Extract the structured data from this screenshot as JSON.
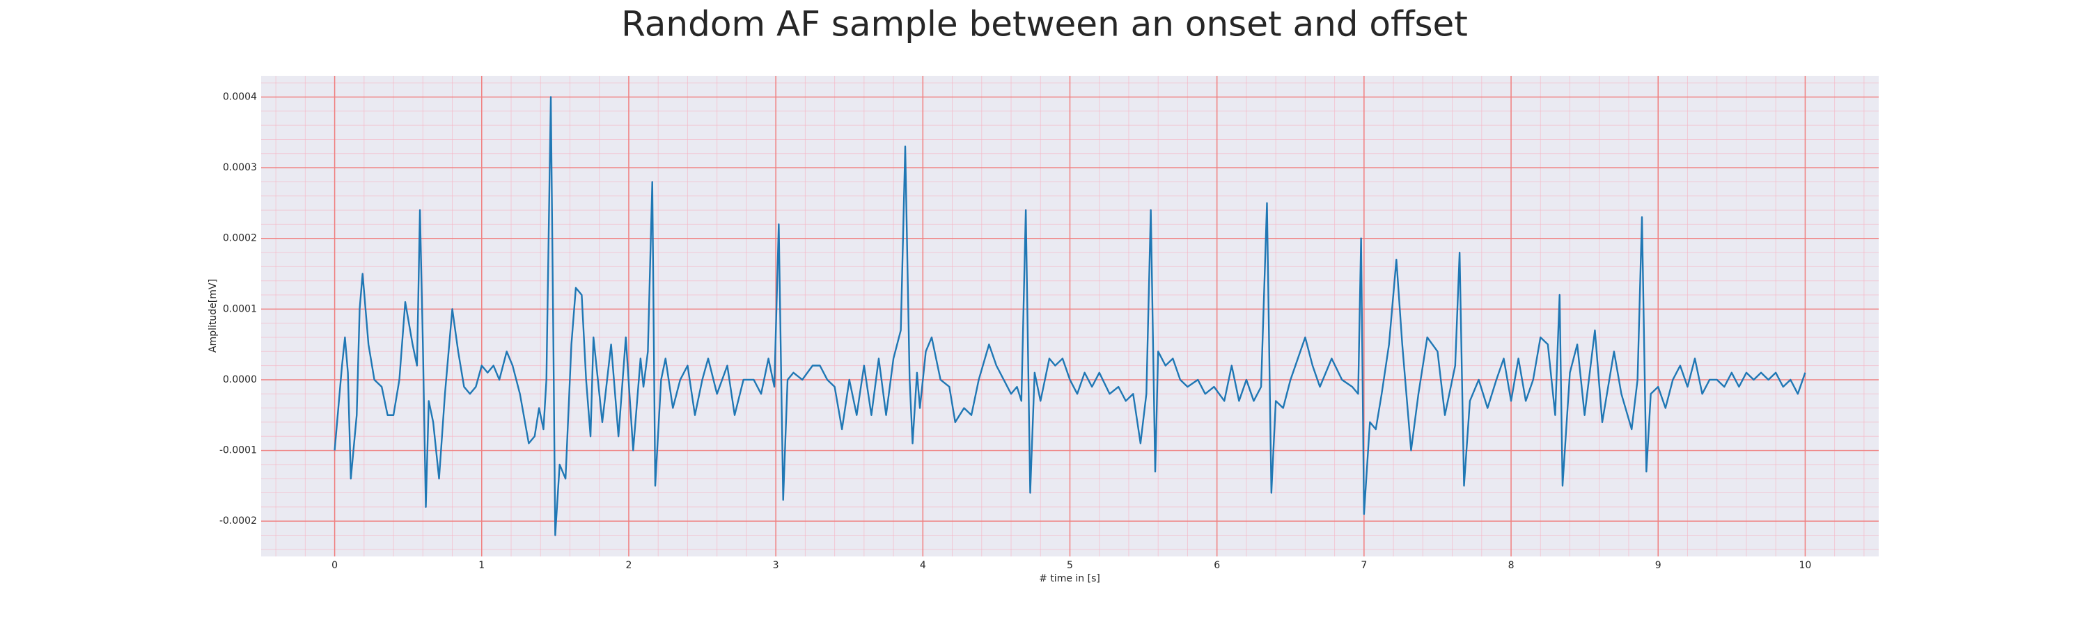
{
  "chart_data": {
    "type": "line",
    "title": "Random AF sample between an onset and offset",
    "xlabel": "# time in [s]",
    "ylabel": "Amplitude[mV]",
    "xlim": [
      -0.5,
      10.5
    ],
    "ylim": [
      -0.00025,
      0.00043
    ],
    "xticks": [
      0,
      1,
      2,
      3,
      4,
      5,
      6,
      7,
      8,
      9,
      10
    ],
    "yticks": [
      -0.0002,
      -0.0001,
      {
        "value": 0,
        "label": "0.0000"
      },
      0.0001,
      0.0002,
      0.0003,
      0.0004
    ],
    "grid": true,
    "minor_grid": true,
    "series": [
      {
        "color": "#1f77b4",
        "x": [
          0,
          0.05,
          0.07,
          0.09,
          0.11,
          0.15,
          0.17,
          0.19,
          0.23,
          0.27,
          0.32,
          0.36,
          0.4,
          0.44,
          0.48,
          0.53,
          0.56,
          0.58,
          0.6,
          0.62,
          0.64,
          0.67,
          0.71,
          0.75,
          0.8,
          0.84,
          0.88,
          0.92,
          0.96,
          1.0,
          1.04,
          1.08,
          1.12,
          1.17,
          1.21,
          1.26,
          1.32,
          1.36,
          1.39,
          1.42,
          1.44,
          1.47,
          1.49,
          1.5,
          1.53,
          1.57,
          1.61,
          1.64,
          1.68,
          1.71,
          1.74,
          1.76,
          1.82,
          1.88,
          1.93,
          1.98,
          2.03,
          2.08,
          2.1,
          2.13,
          2.16,
          2.18,
          2.22,
          2.25,
          2.3,
          2.35,
          2.4,
          2.45,
          2.5,
          2.54,
          2.6,
          2.67,
          2.72,
          2.78,
          2.85,
          2.9,
          2.95,
          2.99,
          3.02,
          3.05,
          3.08,
          3.12,
          3.18,
          3.25,
          3.3,
          3.35,
          3.4,
          3.45,
          3.5,
          3.55,
          3.6,
          3.65,
          3.7,
          3.75,
          3.8,
          3.85,
          3.88,
          3.91,
          3.93,
          3.96,
          3.98,
          4.02,
          4.06,
          4.12,
          4.18,
          4.22,
          4.28,
          4.33,
          4.38,
          4.45,
          4.5,
          4.55,
          4.6,
          4.64,
          4.67,
          4.7,
          4.73,
          4.76,
          4.8,
          4.86,
          4.9,
          4.95,
          5.0,
          5.05,
          5.1,
          5.15,
          5.2,
          5.27,
          5.33,
          5.38,
          5.43,
          5.48,
          5.52,
          5.55,
          5.58,
          5.6,
          5.65,
          5.7,
          5.75,
          5.8,
          5.87,
          5.92,
          5.98,
          6.05,
          6.1,
          6.15,
          6.2,
          6.25,
          6.3,
          6.34,
          6.37,
          6.4,
          6.45,
          6.5,
          6.55,
          6.6,
          6.65,
          6.7,
          6.78,
          6.85,
          6.92,
          6.96,
          6.98,
          7.0,
          7.04,
          7.08,
          7.12,
          7.17,
          7.22,
          7.26,
          7.32,
          7.37,
          7.43,
          7.5,
          7.55,
          7.62,
          7.65,
          7.68,
          7.72,
          7.78,
          7.84,
          7.9,
          7.95,
          8.0,
          8.05,
          8.1,
          8.15,
          8.2,
          8.25,
          8.3,
          8.33,
          8.35,
          8.4,
          8.45,
          8.5,
          8.57,
          8.62,
          8.7,
          8.75,
          8.82,
          8.86,
          8.89,
          8.92,
          8.95,
          9.0,
          9.05,
          9.1,
          9.15,
          9.2,
          9.25,
          9.3,
          9.35,
          9.4,
          9.45,
          9.5,
          9.55,
          9.6,
          9.65,
          9.7,
          9.75,
          9.8,
          9.85,
          9.9,
          9.95,
          10.0
        ],
        "values": [
          -0.0001,
          2e-05,
          6e-05,
          1e-05,
          -0.00014,
          -5e-05,
          0.0001,
          0.00015,
          5e-05,
          0,
          -1e-05,
          -5e-05,
          -5e-05,
          0,
          0.00011,
          5e-05,
          2e-05,
          0.00024,
          5e-05,
          -0.00018,
          -3e-05,
          -6e-05,
          -0.00014,
          -2e-05,
          0.0001,
          4e-05,
          -1e-05,
          -2e-05,
          -1e-05,
          2e-05,
          1e-05,
          2e-05,
          0,
          4e-05,
          2e-05,
          -2e-05,
          -9e-05,
          -8e-05,
          -4e-05,
          -7e-05,
          0,
          0.0004,
          0,
          -0.00022,
          -0.00012,
          -0.00014,
          5e-05,
          0.00013,
          0.00012,
          0,
          -8e-05,
          6e-05,
          -6e-05,
          5e-05,
          -8e-05,
          6e-05,
          -0.0001,
          3e-05,
          -1e-05,
          4e-05,
          0.00028,
          -0.00015,
          0,
          3e-05,
          -4e-05,
          0,
          2e-05,
          -5e-05,
          0,
          3e-05,
          -2e-05,
          2e-05,
          -5e-05,
          0,
          0,
          -2e-05,
          3e-05,
          -1e-05,
          0.00022,
          -0.00017,
          0,
          1e-05,
          0,
          2e-05,
          2e-05,
          0,
          -1e-05,
          -7e-05,
          0,
          -5e-05,
          2e-05,
          -5e-05,
          3e-05,
          -5e-05,
          3e-05,
          7e-05,
          0.00033,
          0,
          -9e-05,
          1e-05,
          -4e-05,
          4e-05,
          6e-05,
          0,
          -1e-05,
          -6e-05,
          -4e-05,
          -5e-05,
          0,
          5e-05,
          2e-05,
          0,
          -2e-05,
          -1e-05,
          -3e-05,
          0.00024,
          -0.00016,
          1e-05,
          -3e-05,
          3e-05,
          2e-05,
          3e-05,
          0,
          -2e-05,
          1e-05,
          -1e-05,
          1e-05,
          -2e-05,
          -1e-05,
          -3e-05,
          -2e-05,
          -9e-05,
          -2e-05,
          0.00024,
          -0.00013,
          4e-05,
          2e-05,
          3e-05,
          0,
          -1e-05,
          0,
          -2e-05,
          -1e-05,
          -3e-05,
          2e-05,
          -3e-05,
          0,
          -3e-05,
          -1e-05,
          0.00025,
          -0.00016,
          -3e-05,
          -4e-05,
          0,
          3e-05,
          6e-05,
          2e-05,
          -1e-05,
          3e-05,
          0,
          -1e-05,
          -2e-05,
          0.0002,
          -0.00019,
          -6e-05,
          -7e-05,
          -2e-05,
          5e-05,
          0.00017,
          5e-05,
          -0.0001,
          -2e-05,
          6e-05,
          4e-05,
          -5e-05,
          2e-05,
          0.00018,
          -0.00015,
          -3e-05,
          0,
          -4e-05,
          0,
          3e-05,
          -3e-05,
          3e-05,
          -3e-05,
          0,
          6e-05,
          5e-05,
          -5e-05,
          0.00012,
          -0.00015,
          1e-05,
          5e-05,
          -5e-05,
          7e-05,
          -6e-05,
          4e-05,
          -2e-05,
          -7e-05,
          0,
          0.00023,
          -0.00013,
          -2e-05,
          -1e-05,
          -4e-05,
          0,
          2e-05,
          -1e-05,
          3e-05,
          -2e-05,
          0,
          0,
          -1e-05,
          1e-05,
          -1e-05,
          1e-05,
          0,
          1e-05,
          0,
          1e-05,
          -1e-05,
          0,
          -2e-05,
          1e-05
        ]
      }
    ]
  }
}
